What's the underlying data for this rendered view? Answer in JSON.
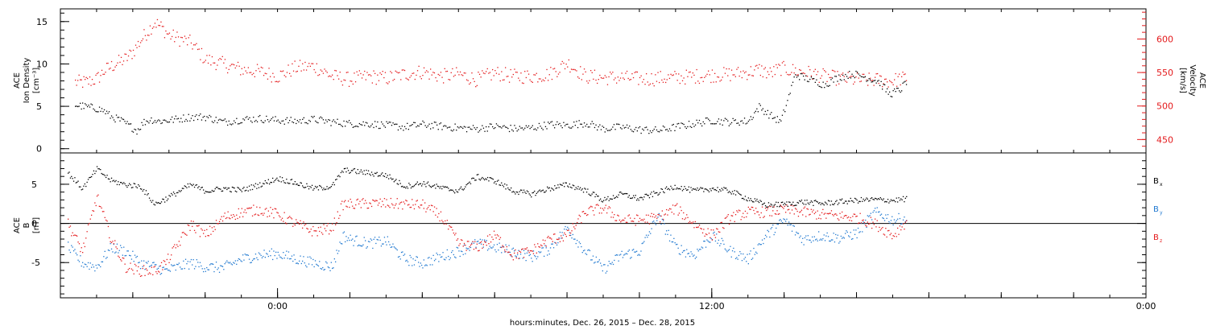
{
  "xaxis": {
    "label": "hours:minutes, Dec. 26, 2015 – Dec. 28, 2015",
    "range_hours": [
      -6,
      24
    ],
    "major_ticks": [
      {
        "hour": 0,
        "label": "0:00"
      },
      {
        "hour": 12,
        "label": "12:00"
      },
      {
        "hour": 24,
        "label": "0:00"
      }
    ]
  },
  "colors": {
    "black": "#000000",
    "red": "#e41a1c",
    "blue": "#1f78d0"
  },
  "chart_data": [
    {
      "type": "scatter",
      "panel": "plasma",
      "ylabel_left": [
        "ACE",
        "Ion Density",
        "[cm⁻³]"
      ],
      "ylabel_right": [
        "ACE",
        "Velocity",
        "[km/s]"
      ],
      "ylim_left": [
        -0.5,
        16.5
      ],
      "yticks_left": [
        0,
        5,
        10,
        15
      ],
      "ylim_right": [
        430,
        645
      ],
      "yticks_right": [
        450,
        500,
        550,
        600
      ],
      "series": [
        {
          "name": "",
          "axis": "left",
          "color": "#000000",
          "x": [
            -5.6,
            -5.3,
            -5.0,
            -4.8,
            -4.6,
            -4.4,
            -4.2,
            -3.9,
            -3.7,
            -3.5,
            -3.3,
            -3.0,
            -2.4,
            -2.0,
            -1.5,
            -1.0,
            -0.5,
            0.0,
            0.5,
            1.0,
            1.5,
            2.0,
            2.5,
            3.0,
            3.5,
            4.0,
            4.5,
            5.0,
            5.5,
            6.0,
            6.5,
            7.0,
            7.5,
            8.0,
            8.5,
            9.0,
            9.5,
            10.0,
            10.5,
            11.0,
            11.5,
            12.0,
            12.5,
            13.0,
            13.3,
            13.6,
            13.9,
            14.3,
            14.7,
            15.1,
            15.5,
            15.9,
            16.3,
            16.6,
            16.9,
            17.2,
            17.4
          ],
          "y": [
            5.2,
            5.0,
            4.8,
            4.5,
            3.8,
            3.5,
            3.0,
            2.2,
            3.2,
            3.5,
            3.3,
            3.4,
            3.8,
            3.8,
            3.2,
            3.5,
            3.6,
            3.4,
            3.3,
            3.5,
            3.2,
            3.0,
            3.0,
            2.8,
            2.6,
            2.9,
            2.7,
            2.5,
            2.4,
            2.7,
            2.4,
            2.5,
            2.9,
            2.8,
            3.1,
            2.4,
            2.6,
            2.3,
            2.2,
            2.6,
            3.0,
            3.4,
            3.2,
            3.3,
            5.0,
            4.0,
            3.2,
            8.8,
            8.2,
            7.6,
            8.5,
            8.9,
            8.4,
            8.0,
            6.5,
            7.0,
            8.2
          ]
        },
        {
          "name": "",
          "axis": "right",
          "color": "#e41a1c",
          "x": [
            -5.6,
            -5.3,
            -5.0,
            -4.8,
            -4.6,
            -4.4,
            -4.2,
            -4.0,
            -3.8,
            -3.6,
            -3.4,
            -3.2,
            -3.0,
            -2.4,
            -2.0,
            -1.5,
            -1.0,
            -0.5,
            0.0,
            0.5,
            1.0,
            1.5,
            2.0,
            2.5,
            3.0,
            3.5,
            4.0,
            4.5,
            5.0,
            5.5,
            6.0,
            6.5,
            7.0,
            7.5,
            8.0,
            8.5,
            9.0,
            9.5,
            10.0,
            10.5,
            11.0,
            11.5,
            12.0,
            12.5,
            13.0,
            13.3,
            13.6,
            13.9,
            14.3,
            14.7,
            15.1,
            15.5,
            15.9,
            16.3,
            16.6,
            16.9,
            17.2,
            17.4
          ],
          "y": [
            536,
            536,
            541,
            553,
            560,
            566,
            571,
            582,
            598,
            612,
            626,
            617,
            606,
            595,
            570,
            563,
            555,
            552,
            545,
            558,
            560,
            545,
            540,
            545,
            542,
            548,
            552,
            545,
            548,
            540,
            550,
            545,
            545,
            548,
            565,
            545,
            543,
            543,
            541,
            542,
            543,
            545,
            547,
            548,
            551,
            555,
            549,
            557,
            553,
            550,
            545,
            542,
            540,
            539,
            540,
            538,
            541,
            543
          ]
        }
      ]
    },
    {
      "type": "scatter",
      "panel": "magnetic-field",
      "ylabel_left": [
        "ACE",
        "B",
        "[nT]"
      ],
      "ylim": [
        -9.5,
        9.0
      ],
      "yticks": [
        -5,
        0,
        5
      ],
      "legend": [
        {
          "name": "B",
          "sub": "x",
          "color": "#000000"
        },
        {
          "name": "B",
          "sub": "y",
          "color": "#1f78d0"
        },
        {
          "name": "B",
          "sub": "z",
          "color": "#e41a1c"
        }
      ],
      "series": [
        {
          "name": "Bx",
          "color": "#000000",
          "x": [
            -5.8,
            -5.4,
            -5.0,
            -4.6,
            -4.2,
            -3.8,
            -3.4,
            -3.1,
            -2.4,
            -2.0,
            -1.5,
            -1.0,
            -0.5,
            0.0,
            0.5,
            1.0,
            1.5,
            1.8,
            2.0,
            2.5,
            3.0,
            3.5,
            4.0,
            4.5,
            5.0,
            5.5,
            6.0,
            6.5,
            7.0,
            7.5,
            8.0,
            8.5,
            9.0,
            9.5,
            10.0,
            10.5,
            11.0,
            11.5,
            12.0,
            12.5,
            13.0,
            13.5,
            14.0,
            14.5,
            15.0,
            15.5,
            16.0,
            16.5,
            17.0,
            17.4
          ],
          "y": [
            6.5,
            4.5,
            7.0,
            5.5,
            5.0,
            4.8,
            2.5,
            3.2,
            5.0,
            4.2,
            4.5,
            4.3,
            5.0,
            5.8,
            5.2,
            4.5,
            4.8,
            6.8,
            6.8,
            6.5,
            6.2,
            4.8,
            5.2,
            4.6,
            4.2,
            6.0,
            5.5,
            4.2,
            3.8,
            4.5,
            5.0,
            4.3,
            3.0,
            3.8,
            3.2,
            4.0,
            4.8,
            4.2,
            4.5,
            4.2,
            3.2,
            2.4,
            2.5,
            2.8,
            2.6,
            2.8,
            3.0,
            3.1,
            3.0,
            3.2
          ]
        },
        {
          "name": "By",
          "color": "#1f78d0",
          "x": [
            -5.8,
            -5.4,
            -5.0,
            -4.6,
            -4.2,
            -3.8,
            -3.4,
            -3.1,
            -2.4,
            -2.0,
            -1.5,
            -1.0,
            -0.5,
            0.0,
            0.5,
            1.0,
            1.5,
            1.8,
            2.0,
            2.5,
            3.0,
            3.5,
            4.0,
            4.5,
            5.0,
            5.5,
            6.0,
            6.5,
            7.0,
            7.5,
            8.0,
            8.5,
            9.0,
            9.5,
            10.0,
            10.5,
            11.0,
            11.5,
            12.0,
            12.5,
            13.0,
            13.5,
            14.0,
            14.5,
            15.0,
            15.5,
            16.0,
            16.5,
            17.0,
            17.4
          ],
          "y": [
            -3.0,
            -5.0,
            -5.5,
            -3.0,
            -3.5,
            -5.0,
            -5.5,
            -6.0,
            -5.0,
            -5.5,
            -5.6,
            -4.5,
            -4.0,
            -3.8,
            -4.5,
            -5.0,
            -5.5,
            -1.5,
            -2.0,
            -2.5,
            -2.2,
            -4.5,
            -5.0,
            -4.2,
            -3.5,
            -2.5,
            -3.0,
            -3.5,
            -4.2,
            -3.2,
            -0.5,
            -3.5,
            -5.8,
            -4.0,
            -3.5,
            1.0,
            -3.0,
            -4.0,
            -1.5,
            -3.5,
            -4.5,
            -1.5,
            0.5,
            -2.0,
            -1.5,
            -1.8,
            -1.2,
            1.5,
            0.5,
            0.8
          ]
        },
        {
          "name": "Bz",
          "color": "#e41a1c",
          "x": [
            -5.8,
            -5.4,
            -5.0,
            -4.6,
            -4.2,
            -3.8,
            -3.4,
            -3.1,
            -2.4,
            -2.0,
            -1.5,
            -1.0,
            -0.5,
            0.0,
            0.5,
            1.0,
            1.5,
            1.8,
            2.0,
            2.5,
            3.0,
            3.5,
            4.0,
            4.5,
            5.0,
            5.5,
            6.0,
            6.5,
            7.0,
            7.5,
            8.0,
            8.5,
            9.0,
            9.5,
            10.0,
            10.5,
            11.0,
            11.5,
            12.0,
            12.5,
            13.0,
            13.5,
            14.0,
            14.5,
            15.0,
            15.5,
            16.0,
            16.5,
            17.0,
            17.4
          ],
          "y": [
            0.0,
            -3.5,
            3.5,
            -2.0,
            -5.5,
            -6.0,
            -6.0,
            -5.0,
            0.0,
            -1.5,
            0.8,
            1.5,
            1.8,
            1.2,
            0.0,
            -1.0,
            -0.5,
            2.5,
            2.5,
            2.6,
            2.6,
            2.5,
            2.4,
            1.0,
            -2.5,
            -3.0,
            -1.5,
            -4.0,
            -3.5,
            -2.0,
            -1.5,
            1.5,
            2.0,
            0.5,
            0.5,
            0.8,
            2.0,
            0.0,
            -1.5,
            0.8,
            1.5,
            1.5,
            1.8,
            1.5,
            1.2,
            1.0,
            0.8,
            0.0,
            -1.5,
            0.5
          ]
        }
      ]
    }
  ]
}
